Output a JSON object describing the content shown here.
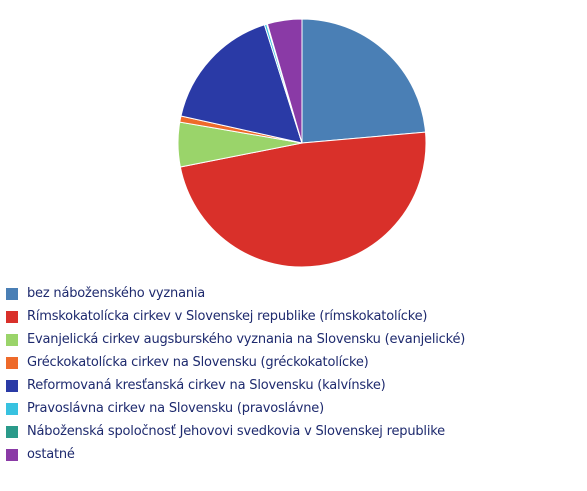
{
  "chart_data": {
    "type": "pie",
    "title": "",
    "start_angle_deg": 0,
    "direction": "clockwise",
    "slices": [
      {
        "label": "bez náboženského vyznania",
        "value": 23.6,
        "color": "#4a7fb5"
      },
      {
        "label": "Rímskokatolícka cirkev v Slovenskej republike (rímskokatolícke)",
        "value": 48.3,
        "color": "#d9302a"
      },
      {
        "label": "Evanjelická cirkev augsburského vyznania na Slovensku (evanjelické)",
        "value": 5.8,
        "color": "#9ad46a"
      },
      {
        "label": "Gréckokatolícka cirkev na Slovensku (gréckokatolícke)",
        "value": 0.8,
        "color": "#ee6a2a"
      },
      {
        "label": "Reformovaná kresťanská cirkev na Slovensku (kalvínske)",
        "value": 16.6,
        "color": "#2a3aa6"
      },
      {
        "label": "Pravoslávna cirkev na Slovensku (pravoslávne)",
        "value": 0.3,
        "color": "#38c2e0"
      },
      {
        "label": "Náboženská spoločnosť Jehovovi svedkovia v Slovenskej republike",
        "value": 0.1,
        "color": "#2a9a8a"
      },
      {
        "label": "ostatné",
        "value": 4.5,
        "color": "#8a3aa6"
      }
    ],
    "legend_position": "bottom-left"
  },
  "legend": {
    "items": [
      {
        "label": "bez náboženského vyznania",
        "color": "#4a7fb5"
      },
      {
        "label": "Rímskokatolícka cirkev v Slovenskej republike (rímskokatolícke)",
        "color": "#d9302a"
      },
      {
        "label": "Evanjelická cirkev augsburského vyznania na Slovensku (evanjelické)",
        "color": "#9ad46a"
      },
      {
        "label": "Gréckokatolícka cirkev na Slovensku (gréckokatolícke)",
        "color": "#ee6a2a"
      },
      {
        "label": "Reformovaná kresťanská cirkev na Slovensku (kalvínske)",
        "color": "#2a3aa6"
      },
      {
        "label": "Pravoslávna cirkev na Slovensku (pravoslávne)",
        "color": "#38c2e0"
      },
      {
        "label": "Náboženská spoločnosť Jehovovi svedkovia v Slovenskej republike",
        "color": "#2a9a8a"
      },
      {
        "label": "ostatné",
        "color": "#8a3aa6"
      }
    ]
  }
}
